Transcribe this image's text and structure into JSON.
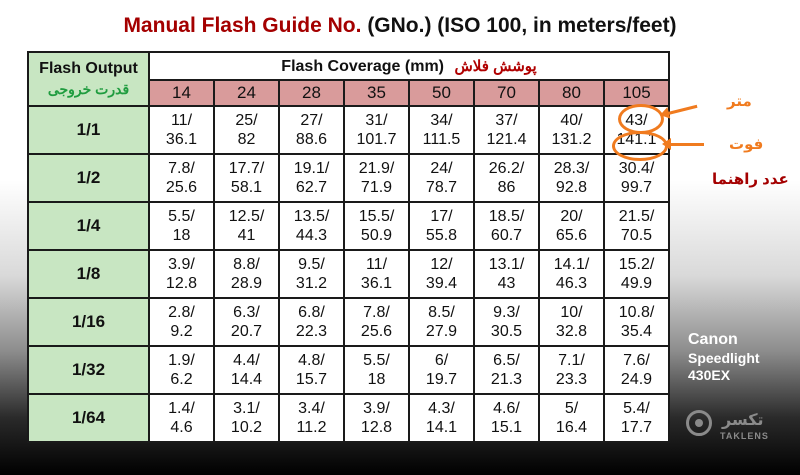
{
  "title": {
    "main": "Manual Flash Guide No.",
    "sub": "(GNo.) (ISO 100, in meters/feet)"
  },
  "table": {
    "output_header": "Flash Output",
    "output_header_fa": "قدرت خروجی",
    "coverage_header": "Flash Coverage (mm)",
    "coverage_header_fa": "پوشش فلاش",
    "focal_lengths": [
      "14",
      "24",
      "28",
      "35",
      "50",
      "70",
      "80",
      "105"
    ],
    "rows": [
      {
        "power": "1/1",
        "cells": [
          [
            "11/",
            "36.1"
          ],
          [
            "25/",
            "82"
          ],
          [
            "27/",
            "88.6"
          ],
          [
            "31/",
            "101.7"
          ],
          [
            "34/",
            "111.5"
          ],
          [
            "37/",
            "121.4"
          ],
          [
            "40/",
            "131.2"
          ],
          [
            "43/",
            "141.1"
          ]
        ]
      },
      {
        "power": "1/2",
        "cells": [
          [
            "7.8/",
            "25.6"
          ],
          [
            "17.7/",
            "58.1"
          ],
          [
            "19.1/",
            "62.7"
          ],
          [
            "21.9/",
            "71.9"
          ],
          [
            "24/",
            "78.7"
          ],
          [
            "26.2/",
            "86"
          ],
          [
            "28.3/",
            "92.8"
          ],
          [
            "30.4/",
            "99.7"
          ]
        ]
      },
      {
        "power": "1/4",
        "cells": [
          [
            "5.5/",
            "18"
          ],
          [
            "12.5/",
            "41"
          ],
          [
            "13.5/",
            "44.3"
          ],
          [
            "15.5/",
            "50.9"
          ],
          [
            "17/",
            "55.8"
          ],
          [
            "18.5/",
            "60.7"
          ],
          [
            "20/",
            "65.6"
          ],
          [
            "21.5/",
            "70.5"
          ]
        ]
      },
      {
        "power": "1/8",
        "cells": [
          [
            "3.9/",
            "12.8"
          ],
          [
            "8.8/",
            "28.9"
          ],
          [
            "9.5/",
            "31.2"
          ],
          [
            "11/",
            "36.1"
          ],
          [
            "12/",
            "39.4"
          ],
          [
            "13.1/",
            "43"
          ],
          [
            "14.1/",
            "46.3"
          ],
          [
            "15.2/",
            "49.9"
          ]
        ]
      },
      {
        "power": "1/16",
        "cells": [
          [
            "2.8/",
            "9.2"
          ],
          [
            "6.3/",
            "20.7"
          ],
          [
            "6.8/",
            "22.3"
          ],
          [
            "7.8/",
            "25.6"
          ],
          [
            "8.5/",
            "27.9"
          ],
          [
            "9.3/",
            "30.5"
          ],
          [
            "10/",
            "32.8"
          ],
          [
            "10.8/",
            "35.4"
          ]
        ]
      },
      {
        "power": "1/32",
        "cells": [
          [
            "1.9/",
            "6.2"
          ],
          [
            "4.4/",
            "14.4"
          ],
          [
            "4.8/",
            "15.7"
          ],
          [
            "5.5/",
            "18"
          ],
          [
            "6/",
            "19.7"
          ],
          [
            "6.5/",
            "21.3"
          ],
          [
            "7.1/",
            "23.3"
          ],
          [
            "7.6/",
            "24.9"
          ]
        ]
      },
      {
        "power": "1/64",
        "cells": [
          [
            "1.4/",
            "4.6"
          ],
          [
            "3.1/",
            "10.2"
          ],
          [
            "3.4/",
            "11.2"
          ],
          [
            "3.9/",
            "12.8"
          ],
          [
            "4.3/",
            "14.1"
          ],
          [
            "4.6/",
            "15.1"
          ],
          [
            "5/",
            "16.4"
          ],
          [
            "5.4/",
            "17.7"
          ]
        ]
      }
    ]
  },
  "annotations": {
    "meter": "متر",
    "feet": "فوت",
    "guide_number": "عدد راهنما"
  },
  "product": {
    "brand": "Canon",
    "line1": "Speedlight",
    "line2": "430EX"
  },
  "logo": {
    "name_fa": "تکسر",
    "name_en": "TAKLENS"
  },
  "colors": {
    "title_red": "#a40000",
    "header_green": "#c8e6c2",
    "focal_row_pink": "#d99b9b",
    "annotation_orange": "#f07b1f"
  }
}
